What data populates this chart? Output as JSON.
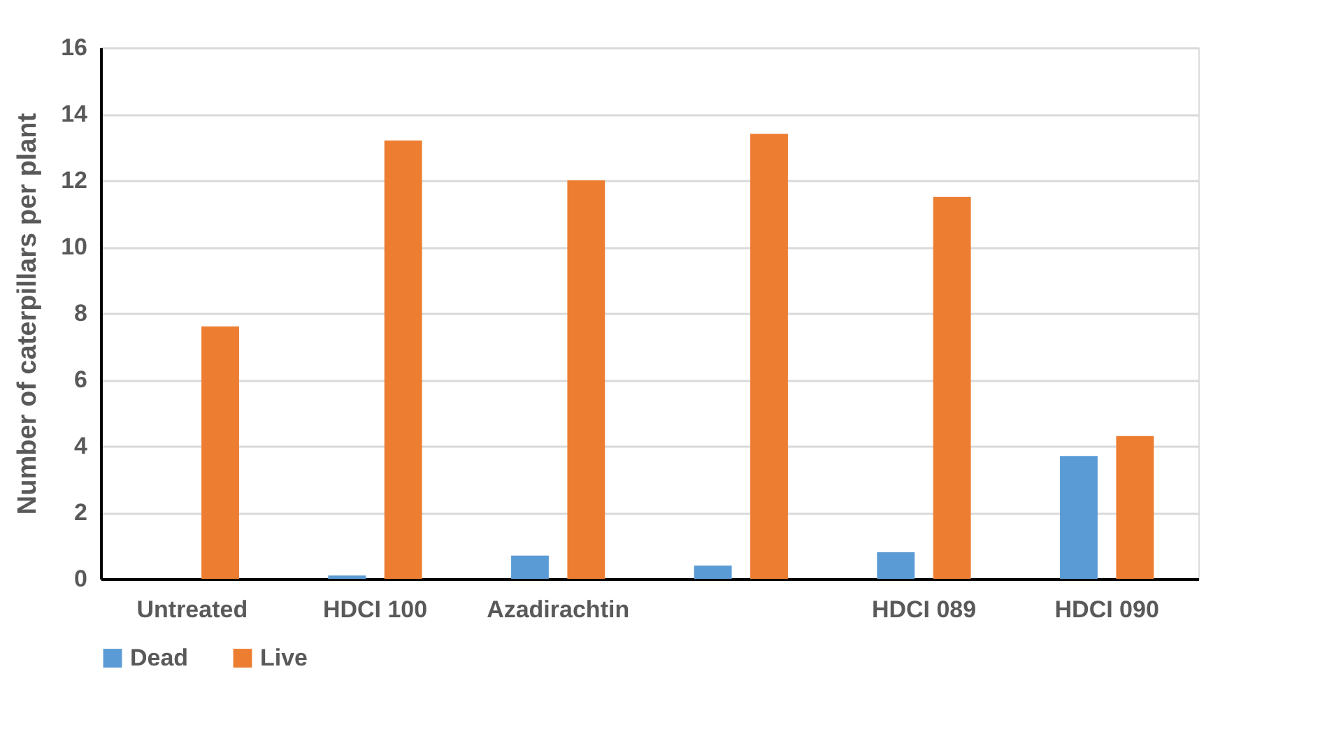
{
  "chart_data": {
    "type": "bar",
    "ylabel": "Number of caterpillars  per plant",
    "categories": [
      "Untreated",
      "HDCI 100",
      "Azadirachtin",
      null,
      "HDCI 089",
      "HDCI 090"
    ],
    "series": [
      {
        "name": "Dead",
        "color": "#5b9bd5",
        "values": [
          0,
          0.1,
          0.7,
          0.4,
          0.8,
          3.7
        ]
      },
      {
        "name": "Live",
        "color": "#ed7d31",
        "values": [
          7.6,
          13.2,
          12.0,
          13.4,
          11.5,
          4.3
        ]
      }
    ],
    "ylim": [
      0,
      16
    ],
    "yticks": [
      0,
      2,
      4,
      6,
      8,
      10,
      12,
      14,
      16
    ],
    "grid": "y",
    "legend": "bottom"
  }
}
